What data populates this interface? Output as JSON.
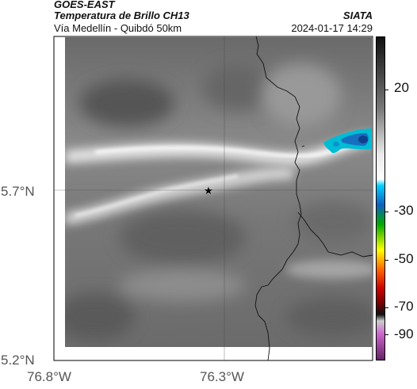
{
  "header": {
    "line1": "GOES-EAST",
    "line2": "Temperatura de Brillo CH13",
    "line3": "Vía Medellín - Quibdó 50km",
    "source": "SIATA",
    "datetime": "2024-01-17 14:29"
  },
  "axes": {
    "y_ticks": [
      "5.7°N",
      "5.2°N"
    ],
    "x_ticks": [
      "76.8°W",
      "76.3°W"
    ]
  },
  "colorbar": {
    "ticks": [
      "20",
      "-30",
      "-50",
      "-70",
      "-90"
    ],
    "colors": [
      "#111111",
      "#777777",
      "#e8e8e8",
      "#ffffff",
      "#00d0ff",
      "#1060c0",
      "#00aa00",
      "#ffff00",
      "#ff6600",
      "#cc0000",
      "#800000",
      "#111111",
      "#cccccc",
      "#cc66cc",
      "#662266"
    ]
  },
  "map": {
    "marker": "star-marker",
    "colors": {
      "background": "#7b7b7b",
      "cold_cloud": "#00bcd4",
      "cold_core": "#123f8c"
    }
  }
}
